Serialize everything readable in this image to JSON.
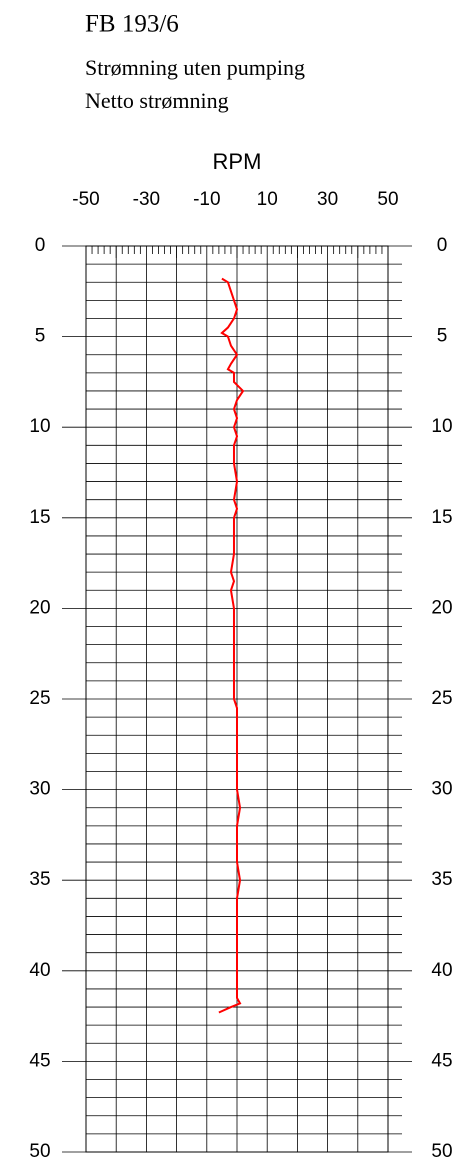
{
  "chart_data": {
    "type": "line",
    "orientation": "vertical",
    "title": "FB 193/6",
    "subtitle": [
      "Strømning uten pumping",
      "Netto strømning"
    ],
    "ylabel": "RPM",
    "color": "#ff0000",
    "x": [
      1.8,
      2.0,
      2.5,
      3.0,
      3.5,
      4.0,
      4.5,
      4.8,
      5.0,
      5.5,
      6.0,
      6.5,
      6.8,
      7.0,
      7.5,
      8.0,
      8.5,
      9.0,
      9.5,
      10,
      10.5,
      11,
      12,
      13,
      14,
      14.5,
      15,
      16,
      17,
      18,
      18.5,
      19,
      20,
      21,
      22,
      23,
      24,
      25,
      25.5,
      26,
      27,
      28,
      29,
      30,
      31,
      32,
      33,
      34,
      35,
      36,
      37,
      38,
      39,
      40,
      41,
      41.5,
      41.8,
      42.0,
      42.3
    ],
    "values": [
      -5,
      -3,
      -2,
      -1,
      0,
      -1,
      -3,
      -5,
      -3,
      -2,
      0,
      -2,
      -3,
      -1,
      -1,
      2,
      0,
      -1,
      0,
      -1,
      0,
      -1,
      -1,
      0,
      -1,
      0,
      -1,
      -1,
      -1,
      -2,
      -1,
      -2,
      -1,
      -1,
      -1,
      -1,
      -1,
      -1,
      0,
      0,
      0,
      0,
      0,
      0,
      1,
      0,
      0,
      0,
      1,
      0,
      0,
      0,
      0,
      0,
      0,
      0,
      1,
      -2,
      -6
    ],
    "xlim": [
      0,
      50
    ],
    "xticks": [
      0,
      5,
      10,
      15,
      20,
      25,
      30,
      35,
      40,
      45,
      50
    ],
    "ylim": [
      -50,
      50
    ],
    "yticks": [
      -50,
      -30,
      -10,
      10,
      30,
      50
    ],
    "grid": true
  }
}
